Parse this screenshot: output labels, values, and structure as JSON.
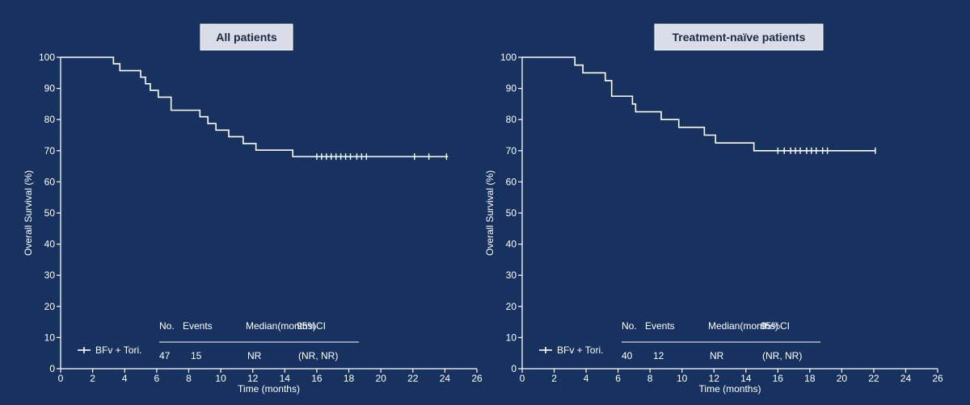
{
  "colors": {
    "background": "#17325e",
    "foreground": "#ffffff",
    "title_box": "#d9dde7",
    "title_text": "#1b2a44"
  },
  "chart_data": [
    {
      "type": "line",
      "title": "All patients",
      "xlabel": "Time (months)",
      "ylabel": "Overall Survival (%)",
      "xlim": [
        0,
        26
      ],
      "ylim": [
        0,
        100
      ],
      "x_ticks": [
        0,
        2,
        4,
        6,
        8,
        10,
        12,
        14,
        16,
        18,
        20,
        22,
        24,
        26
      ],
      "y_ticks": [
        0,
        10,
        20,
        30,
        40,
        50,
        60,
        70,
        80,
        90,
        100
      ],
      "grid": false,
      "legend": "bottom-left",
      "series": [
        {
          "name": "BFv + Tori.",
          "x": [
            0,
            3.3,
            3.7,
            5.0,
            5.3,
            5.6,
            6.1,
            6.9,
            8.7,
            9.2,
            9.7,
            10.5,
            11.4,
            12.2,
            14.5,
            24.2
          ],
          "y": [
            100,
            97.9,
            95.7,
            93.6,
            91.5,
            89.4,
            87.2,
            83.0,
            80.9,
            78.7,
            76.6,
            74.5,
            72.3,
            70.2,
            68.1,
            68.1
          ],
          "censored": [
            16.0,
            16.3,
            16.6,
            16.9,
            17.2,
            17.5,
            17.8,
            18.1,
            18.5,
            18.8,
            19.1,
            22.1,
            23.0,
            24.1
          ]
        }
      ],
      "summary_table": {
        "headers": [
          "No.",
          "Events",
          "Median(months)",
          "95%CI"
        ],
        "rows": [
          [
            "47",
            "15",
            "NR",
            "(NR, NR)"
          ]
        ]
      }
    },
    {
      "type": "line",
      "title": "Treatment-naïve patients",
      "xlabel": "Time (months)",
      "ylabel": "Overall Survival (%)",
      "xlim": [
        0,
        26
      ],
      "ylim": [
        0,
        100
      ],
      "x_ticks": [
        0,
        2,
        4,
        6,
        8,
        10,
        12,
        14,
        16,
        18,
        20,
        22,
        24,
        26
      ],
      "y_ticks": [
        0,
        10,
        20,
        30,
        40,
        50,
        60,
        70,
        80,
        90,
        100
      ],
      "grid": false,
      "legend": "bottom-left",
      "series": [
        {
          "name": "BFv + Tori.",
          "x": [
            0,
            3.3,
            3.8,
            5.2,
            5.6,
            6.9,
            7.1,
            8.7,
            9.8,
            11.4,
            12.1,
            14.5,
            22.1
          ],
          "y": [
            100,
            97.5,
            95.0,
            92.5,
            87.5,
            85.0,
            82.5,
            80.0,
            77.5,
            75.0,
            72.5,
            70.0,
            70.0
          ],
          "censored": [
            16.0,
            16.4,
            16.8,
            17.1,
            17.4,
            17.8,
            18.1,
            18.4,
            18.8,
            19.1,
            22.1
          ]
        }
      ],
      "summary_table": {
        "headers": [
          "No.",
          "Events",
          "Median(months)",
          "95%CI"
        ],
        "rows": [
          [
            "40",
            "12",
            "NR",
            "(NR, NR)"
          ]
        ]
      }
    }
  ]
}
